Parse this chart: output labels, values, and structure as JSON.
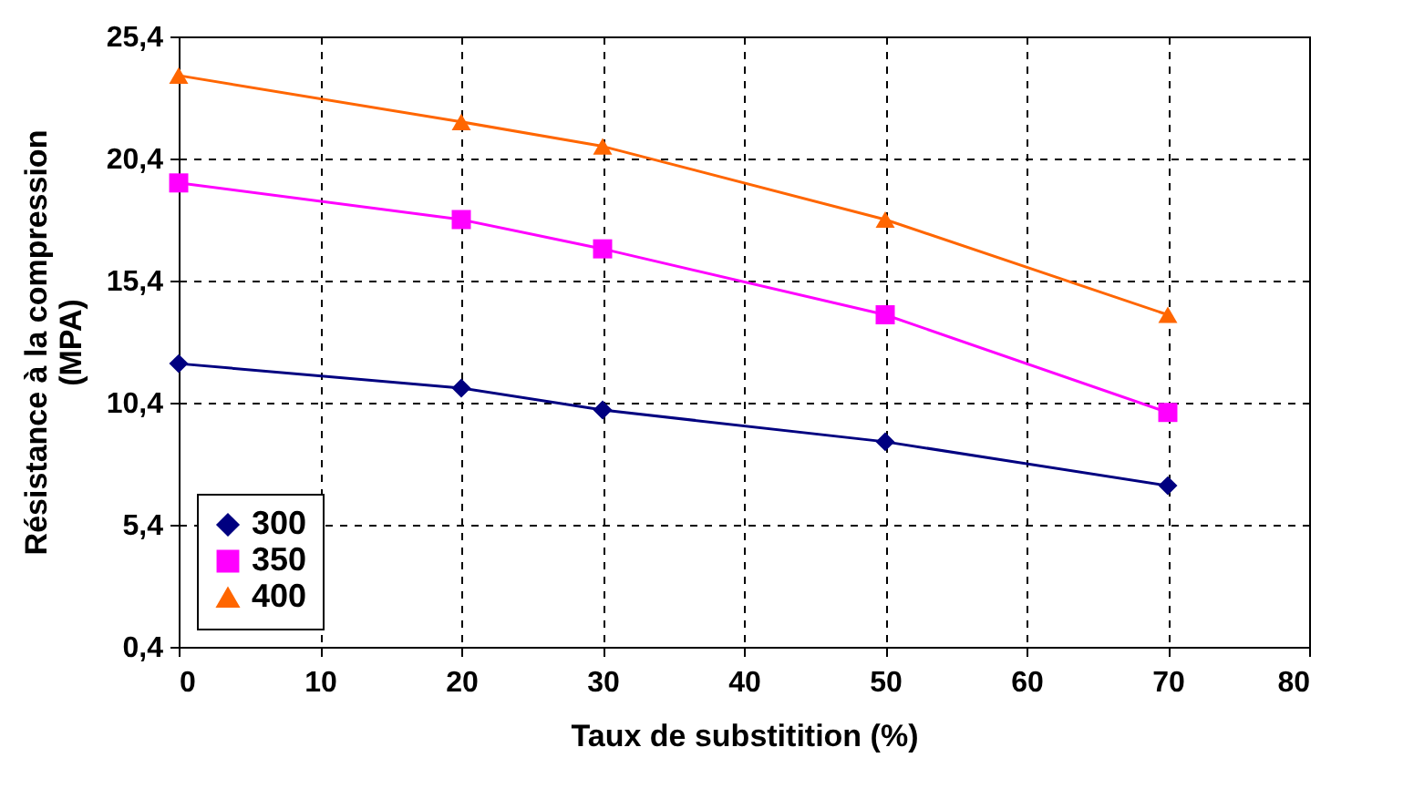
{
  "chart_data": {
    "type": "line",
    "xlabel": "Taux de substitition (%)",
    "ylabel": "Résistance à la compression\n(MPA)",
    "x": [
      0,
      20,
      30,
      50,
      70
    ],
    "series": [
      {
        "name": "300",
        "color": "#000080",
        "marker": "diamond",
        "values": [
          12.0,
          11.0,
          10.1,
          8.8,
          7.0
        ]
      },
      {
        "name": "350",
        "color": "#ff00ff",
        "marker": "square",
        "values": [
          19.4,
          17.9,
          16.7,
          14.0,
          10.0
        ]
      },
      {
        "name": "400",
        "color": "#ff6600",
        "marker": "triangle",
        "values": [
          23.8,
          21.9,
          20.9,
          17.9,
          14.0
        ]
      }
    ],
    "xlim": [
      0,
      80
    ],
    "xticks": [
      0,
      10,
      20,
      30,
      40,
      50,
      60,
      70,
      80
    ],
    "ylim": [
      0.4,
      25.4
    ],
    "yticks": [
      {
        "value": 0.4,
        "label": "0,4"
      },
      {
        "value": 5.4,
        "label": "5,4"
      },
      {
        "value": 10.4,
        "label": "10,4"
      },
      {
        "value": 15.4,
        "label": "15,4"
      },
      {
        "value": 20.4,
        "label": "20,4"
      },
      {
        "value": 25.4,
        "label": "25,4"
      }
    ],
    "grid": true,
    "legend": "bottom left",
    "line_style": "solid"
  }
}
